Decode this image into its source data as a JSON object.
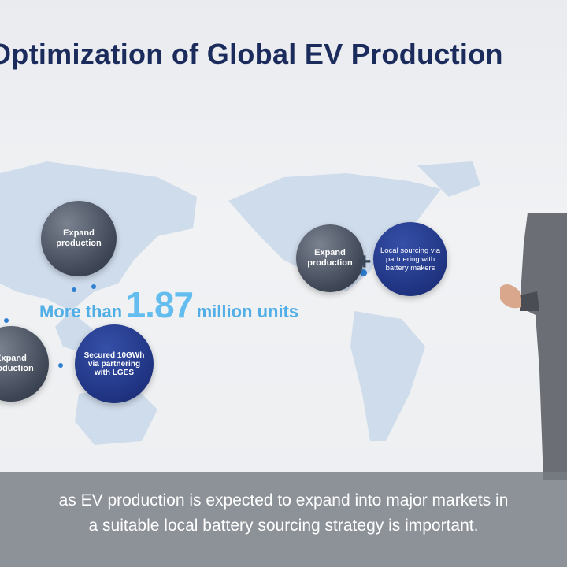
{
  "slide": {
    "title": "Optimization of Global EV Production",
    "circles": {
      "asia_expand": "Expand production",
      "left_expand": "Expand production",
      "secured": "Secured 10GWh via partnering with LGES",
      "us_expand": "Expand production",
      "plus": "+",
      "local_sourcing": "Local sourcing via partnering with battery makers"
    },
    "stat": {
      "prefix": "More than",
      "value": "1.87",
      "suffix": "million units"
    }
  },
  "caption": {
    "line1": "as EV production is expected to expand into major markets in",
    "line2": "a suitable local battery sourcing strategy is important."
  },
  "colors": {
    "title": "#1b2b5c",
    "accent": "#52aee6",
    "navy": "#1f3381"
  }
}
